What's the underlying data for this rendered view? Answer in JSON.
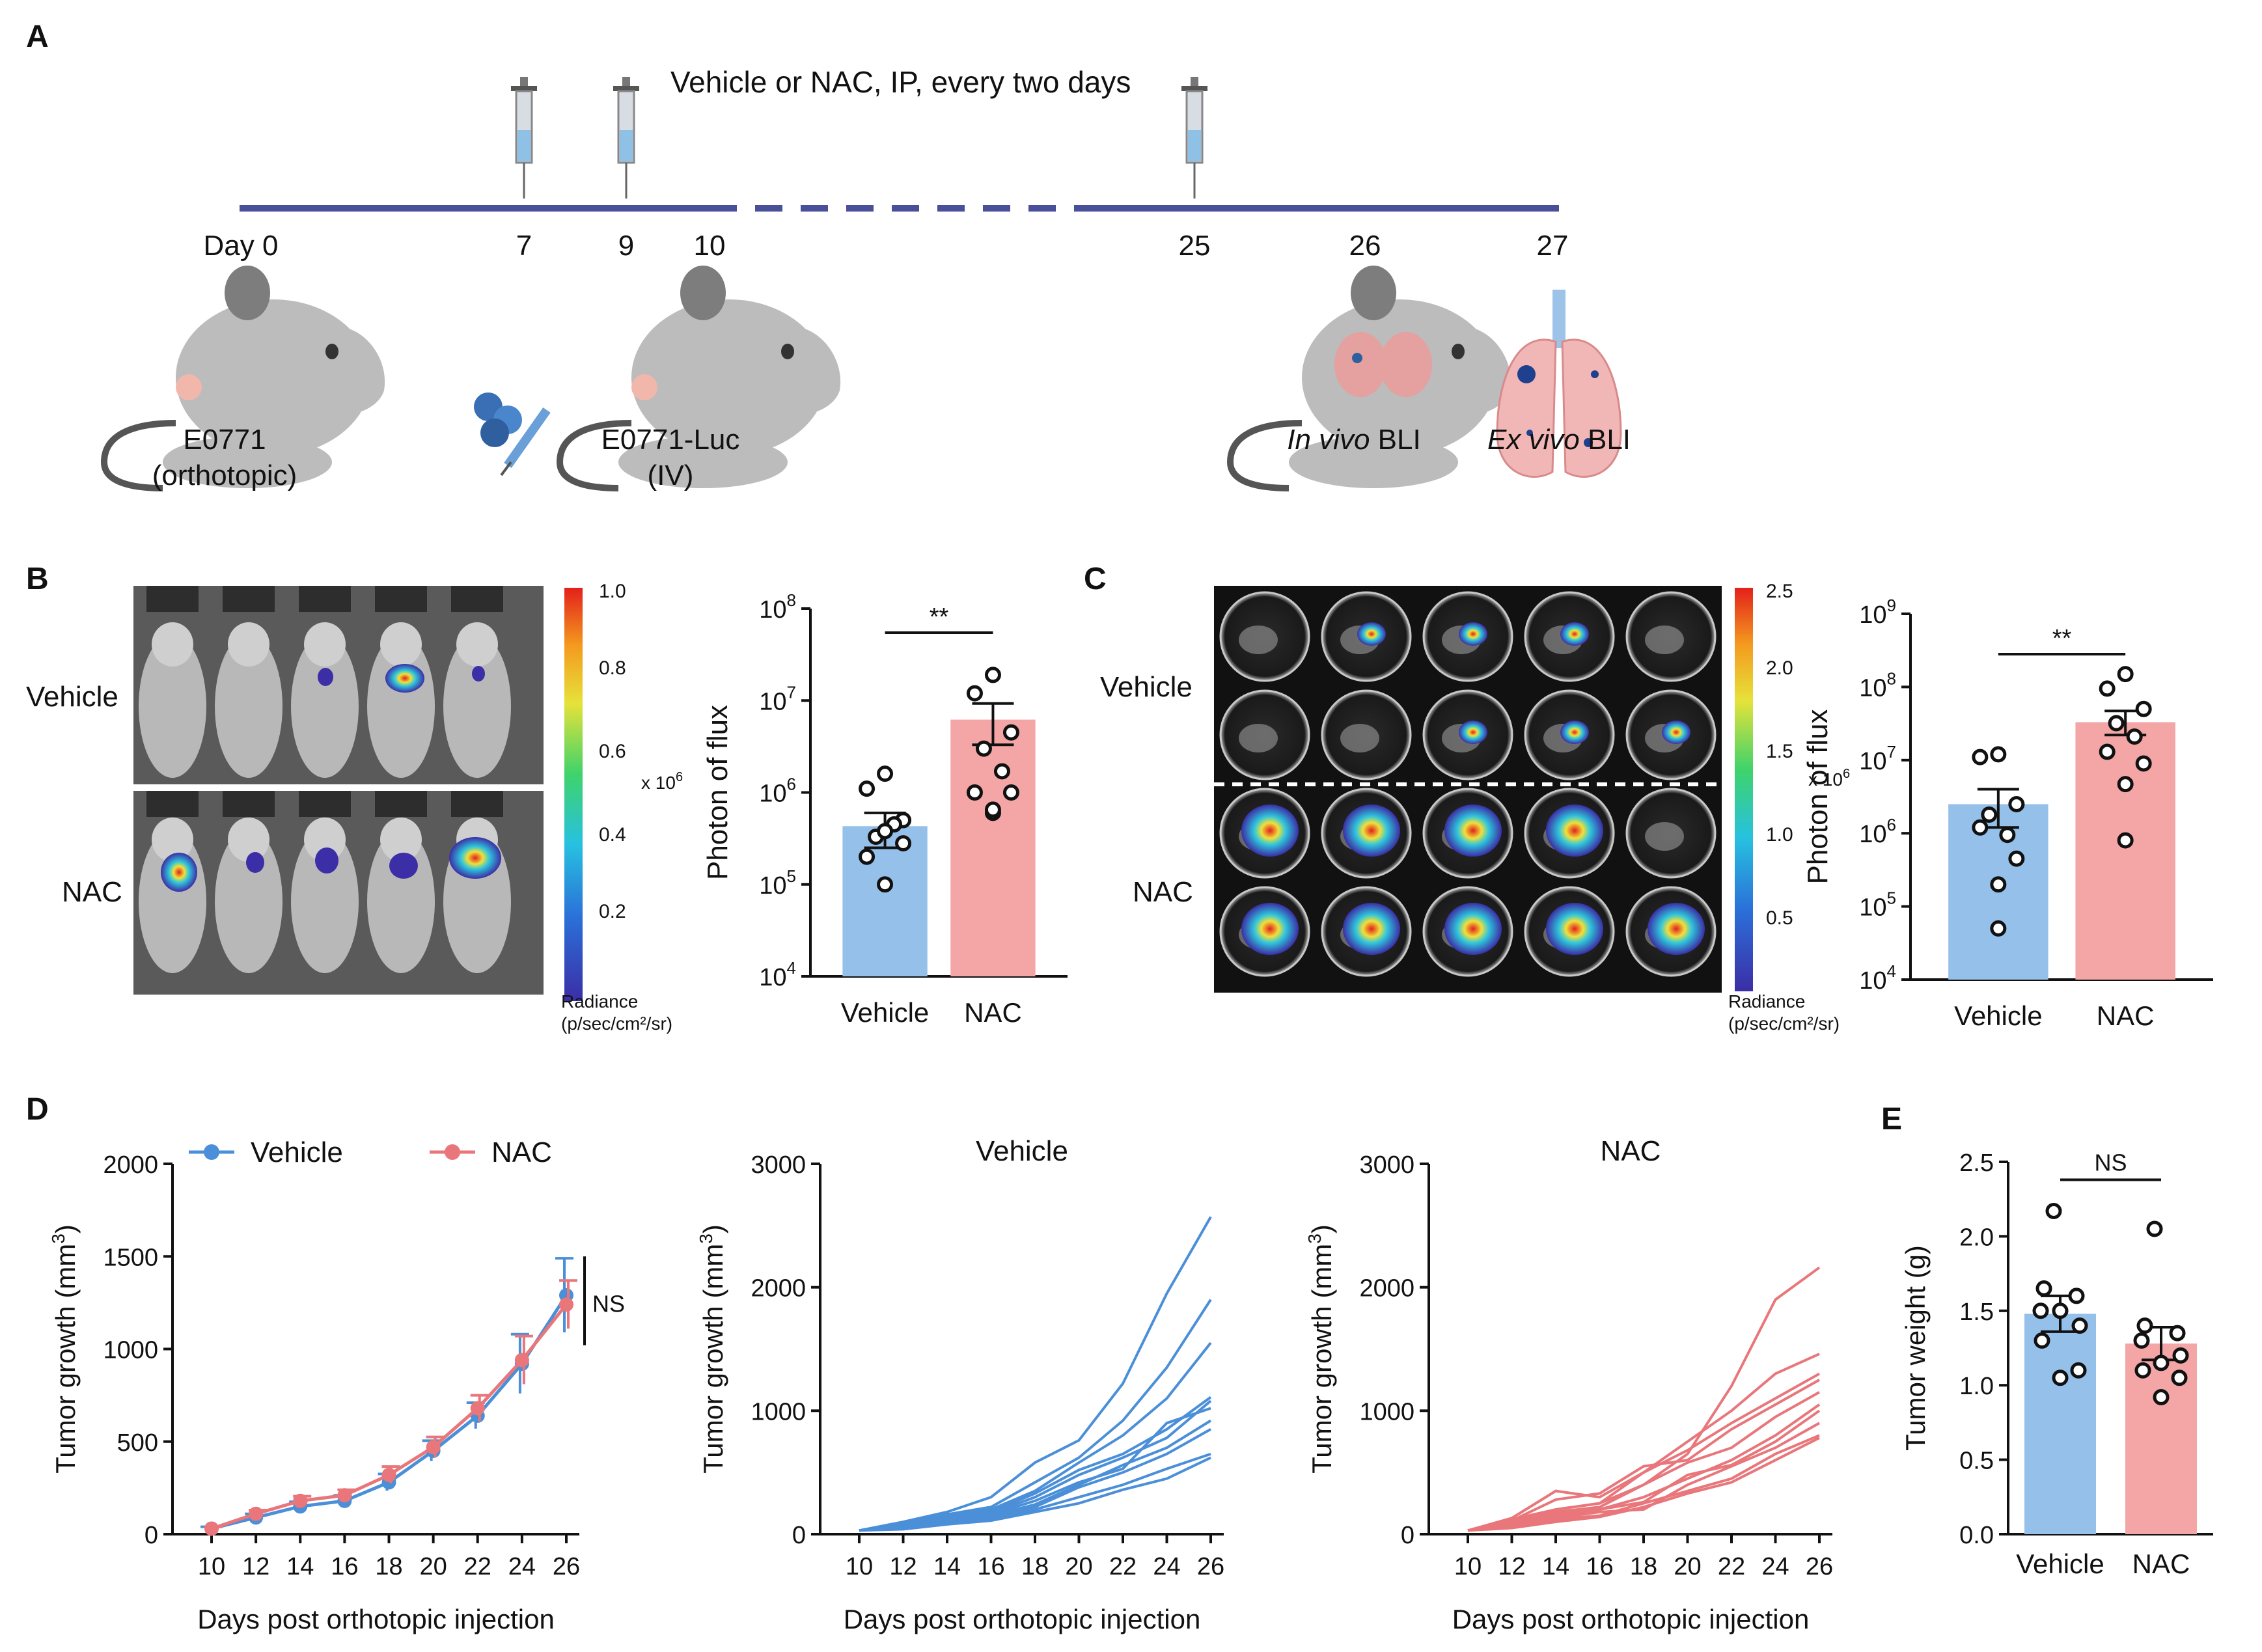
{
  "panel_a": {
    "letter": "A",
    "treatment_label": "Vehicle or NAC, IP, every two days",
    "days": [
      "Day 0",
      "7",
      "9",
      "10",
      "25",
      "26",
      "27"
    ],
    "orthotopic_label_1": "E0771",
    "orthotopic_label_2": "(orthotopic)",
    "iv_label_1": "E0771-Luc",
    "iv_label_2": "(IV)",
    "invivo_italic": "In vivo",
    "invivo_rest": " BLI",
    "exvivo_italic": "Ex vivo",
    "exvivo_rest": " BLI"
  },
  "panel_b": {
    "letter": "B",
    "vehicle_label": "Vehicle",
    "nac_label": "NAC",
    "colorbar_ticks": [
      "1.0",
      "0.8",
      "0.6",
      "0.4",
      "0.2"
    ],
    "colorbar_unit": "x 10",
    "colorbar_exp": "6",
    "radiance_1": "Radiance",
    "radiance_2": "(p/sec/cm²/sr)"
  },
  "panel_c": {
    "letter": "C",
    "vehicle_label": "Vehicle",
    "nac_label": "NAC",
    "colorbar_ticks": [
      "2.5",
      "2.0",
      "1.5",
      "1.0",
      "0.5"
    ],
    "colorbar_unit": "x 10",
    "colorbar_exp": "6",
    "radiance_1": "Radiance",
    "radiance_2": "(p/sec/cm²/sr)"
  },
  "panel_d": {
    "letter": "D"
  },
  "panel_e": {
    "letter": "E"
  },
  "colors": {
    "vehicle": "#4a8fd8",
    "nac": "#e8767a",
    "vehicle_bar": "#95c0ea",
    "nac_bar": "#f4a5a6",
    "timeline": "#4a4f9a"
  },
  "chart_data": [
    {
      "id": "B",
      "type": "bar",
      "scale": "log",
      "categories": [
        "Vehicle",
        "NAC"
      ],
      "values": [
        430000,
        6200000
      ],
      "sem_low": [
        250000,
        3300000
      ],
      "sem_high": [
        600000,
        9300000
      ],
      "points": [
        [
          1600000,
          1100000,
          500000,
          330000,
          450000,
          200000,
          280000,
          380000,
          100000
        ],
        [
          19000000,
          12000000,
          4500000,
          3000000,
          1700000,
          1000000,
          1000000,
          600000,
          650000
        ]
      ],
      "ylabel": "Photon of flux",
      "ylim": [
        10000,
        100000000
      ],
      "yticks": [
        {
          "v": 10000,
          "b": "10",
          "e": "4"
        },
        {
          "v": 100000,
          "b": "10",
          "e": "5"
        },
        {
          "v": 1000000,
          "b": "10",
          "e": "6"
        },
        {
          "v": 10000000,
          "b": "10",
          "e": "7"
        },
        {
          "v": 100000000,
          "b": "10",
          "e": "8"
        }
      ],
      "significance": "**"
    },
    {
      "id": "C",
      "type": "bar",
      "scale": "log",
      "categories": [
        "Vehicle",
        "NAC"
      ],
      "values": [
        2500000,
        33000000
      ],
      "sem_low": [
        1200000,
        22000000
      ],
      "sem_high": [
        4000000,
        47000000
      ],
      "points": [
        [
          12000000,
          11000000,
          2500000,
          1800000,
          950000,
          1200000,
          450000,
          200000,
          50000
        ],
        [
          150000000,
          95000000,
          50000000,
          32000000,
          21000000,
          13000000,
          9000000,
          4700000,
          800000
        ]
      ],
      "ylabel": "Photon of flux",
      "ylim": [
        10000,
        1000000000
      ],
      "yticks": [
        {
          "v": 10000,
          "b": "10",
          "e": "4"
        },
        {
          "v": 100000,
          "b": "10",
          "e": "5"
        },
        {
          "v": 1000000,
          "b": "10",
          "e": "6"
        },
        {
          "v": 10000000,
          "b": "10",
          "e": "7"
        },
        {
          "v": 100000000,
          "b": "10",
          "e": "8"
        },
        {
          "v": 1000000000,
          "b": "10",
          "e": "9"
        }
      ],
      "significance": "**"
    },
    {
      "id": "D1",
      "type": "line",
      "x": [
        10,
        12,
        14,
        16,
        18,
        20,
        22,
        24,
        26
      ],
      "series": [
        {
          "name": "Vehicle",
          "values": [
            30,
            90,
            150,
            180,
            280,
            450,
            640,
            920,
            1290
          ],
          "err": [
            10,
            20,
            25,
            30,
            45,
            55,
            70,
            160,
            200
          ]
        },
        {
          "name": "NAC",
          "values": [
            30,
            110,
            180,
            210,
            320,
            470,
            680,
            940,
            1240
          ],
          "err": [
            10,
            20,
            25,
            30,
            45,
            55,
            70,
            130,
            130
          ]
        }
      ],
      "xlabel": "Days post orthotopic injection",
      "ylabel_pre": "Tumor growth (mm",
      "ylabel_sup": "3",
      "ylabel_post": ")",
      "ylim": [
        0,
        2000
      ],
      "yticks": [
        0,
        500,
        1000,
        1500,
        2000
      ],
      "significance": "NS"
    },
    {
      "id": "D2",
      "type": "line",
      "title": "Vehicle",
      "x": [
        10,
        12,
        14,
        16,
        18,
        20,
        22,
        24,
        26
      ],
      "series": [
        [
          30,
          100,
          180,
          300,
          580,
          760,
          1220,
          1950,
          2570
        ],
        [
          30,
          90,
          160,
          220,
          420,
          620,
          920,
          1350,
          1900
        ],
        [
          30,
          80,
          150,
          200,
          350,
          580,
          800,
          1100,
          1550
        ],
        [
          30,
          70,
          140,
          180,
          330,
          520,
          650,
          850,
          1110
        ],
        [
          30,
          70,
          130,
          170,
          300,
          480,
          620,
          780,
          1080
        ],
        [
          30,
          60,
          120,
          160,
          270,
          420,
          530,
          900,
          1020
        ],
        [
          30,
          60,
          110,
          150,
          240,
          400,
          560,
          700,
          920
        ],
        [
          30,
          50,
          100,
          140,
          220,
          380,
          500,
          650,
          850
        ],
        [
          30,
          50,
          90,
          120,
          200,
          300,
          400,
          530,
          650
        ],
        [
          30,
          40,
          80,
          110,
          180,
          250,
          360,
          450,
          620
        ]
      ],
      "xlabel": "Days post orthotopic injection",
      "ylabel_pre": "Tumor growth (mm",
      "ylabel_sup": "3",
      "ylabel_post": ")",
      "ylim": [
        0,
        3000
      ],
      "yticks": [
        0,
        1000,
        2000,
        3000
      ]
    },
    {
      "id": "D3",
      "type": "line",
      "title": "NAC",
      "x": [
        10,
        12,
        14,
        16,
        18,
        20,
        22,
        24,
        26
      ],
      "series": [
        [
          30,
          120,
          200,
          250,
          400,
          650,
          1200,
          1900,
          2160
        ],
        [
          30,
          130,
          350,
          300,
          500,
          750,
          1000,
          1300,
          1460
        ],
        [
          30,
          100,
          200,
          250,
          500,
          680,
          900,
          1100,
          1300
        ],
        [
          30,
          110,
          280,
          330,
          550,
          600,
          850,
          1050,
          1250
        ],
        [
          30,
          90,
          180,
          220,
          400,
          580,
          700,
          950,
          1150
        ],
        [
          30,
          80,
          150,
          200,
          300,
          450,
          600,
          800,
          1050
        ],
        [
          30,
          100,
          160,
          200,
          260,
          480,
          560,
          750,
          1000
        ],
        [
          30,
          70,
          130,
          180,
          200,
          400,
          550,
          700,
          900
        ],
        [
          30,
          60,
          120,
          150,
          250,
          350,
          450,
          650,
          800
        ],
        [
          30,
          50,
          100,
          140,
          220,
          330,
          420,
          600,
          780
        ]
      ],
      "xlabel": "Days post orthotopic injection",
      "ylabel_pre": "Tumor growth (mm",
      "ylabel_sup": "3",
      "ylabel_post": ")",
      "ylim": [
        0,
        3000
      ],
      "yticks": [
        0,
        1000,
        2000,
        3000
      ]
    },
    {
      "id": "E",
      "type": "bar",
      "categories": [
        "Vehicle",
        "NAC"
      ],
      "values": [
        1.48,
        1.28
      ],
      "sem_low": [
        1.36,
        1.17
      ],
      "sem_high": [
        1.6,
        1.39
      ],
      "points": [
        [
          2.17,
          1.65,
          1.6,
          1.5,
          1.4,
          1.5,
          1.3,
          1.1,
          1.05
        ],
        [
          2.05,
          1.4,
          1.35,
          1.3,
          1.2,
          1.15,
          1.1,
          1.05,
          0.92
        ]
      ],
      "ylabel": "Tumor weight (g)",
      "ylim": [
        0,
        2.5
      ],
      "yticks": [
        "0.0",
        "0.5",
        "1.0",
        "1.5",
        "2.0",
        "2.5"
      ],
      "significance": "NS"
    }
  ]
}
